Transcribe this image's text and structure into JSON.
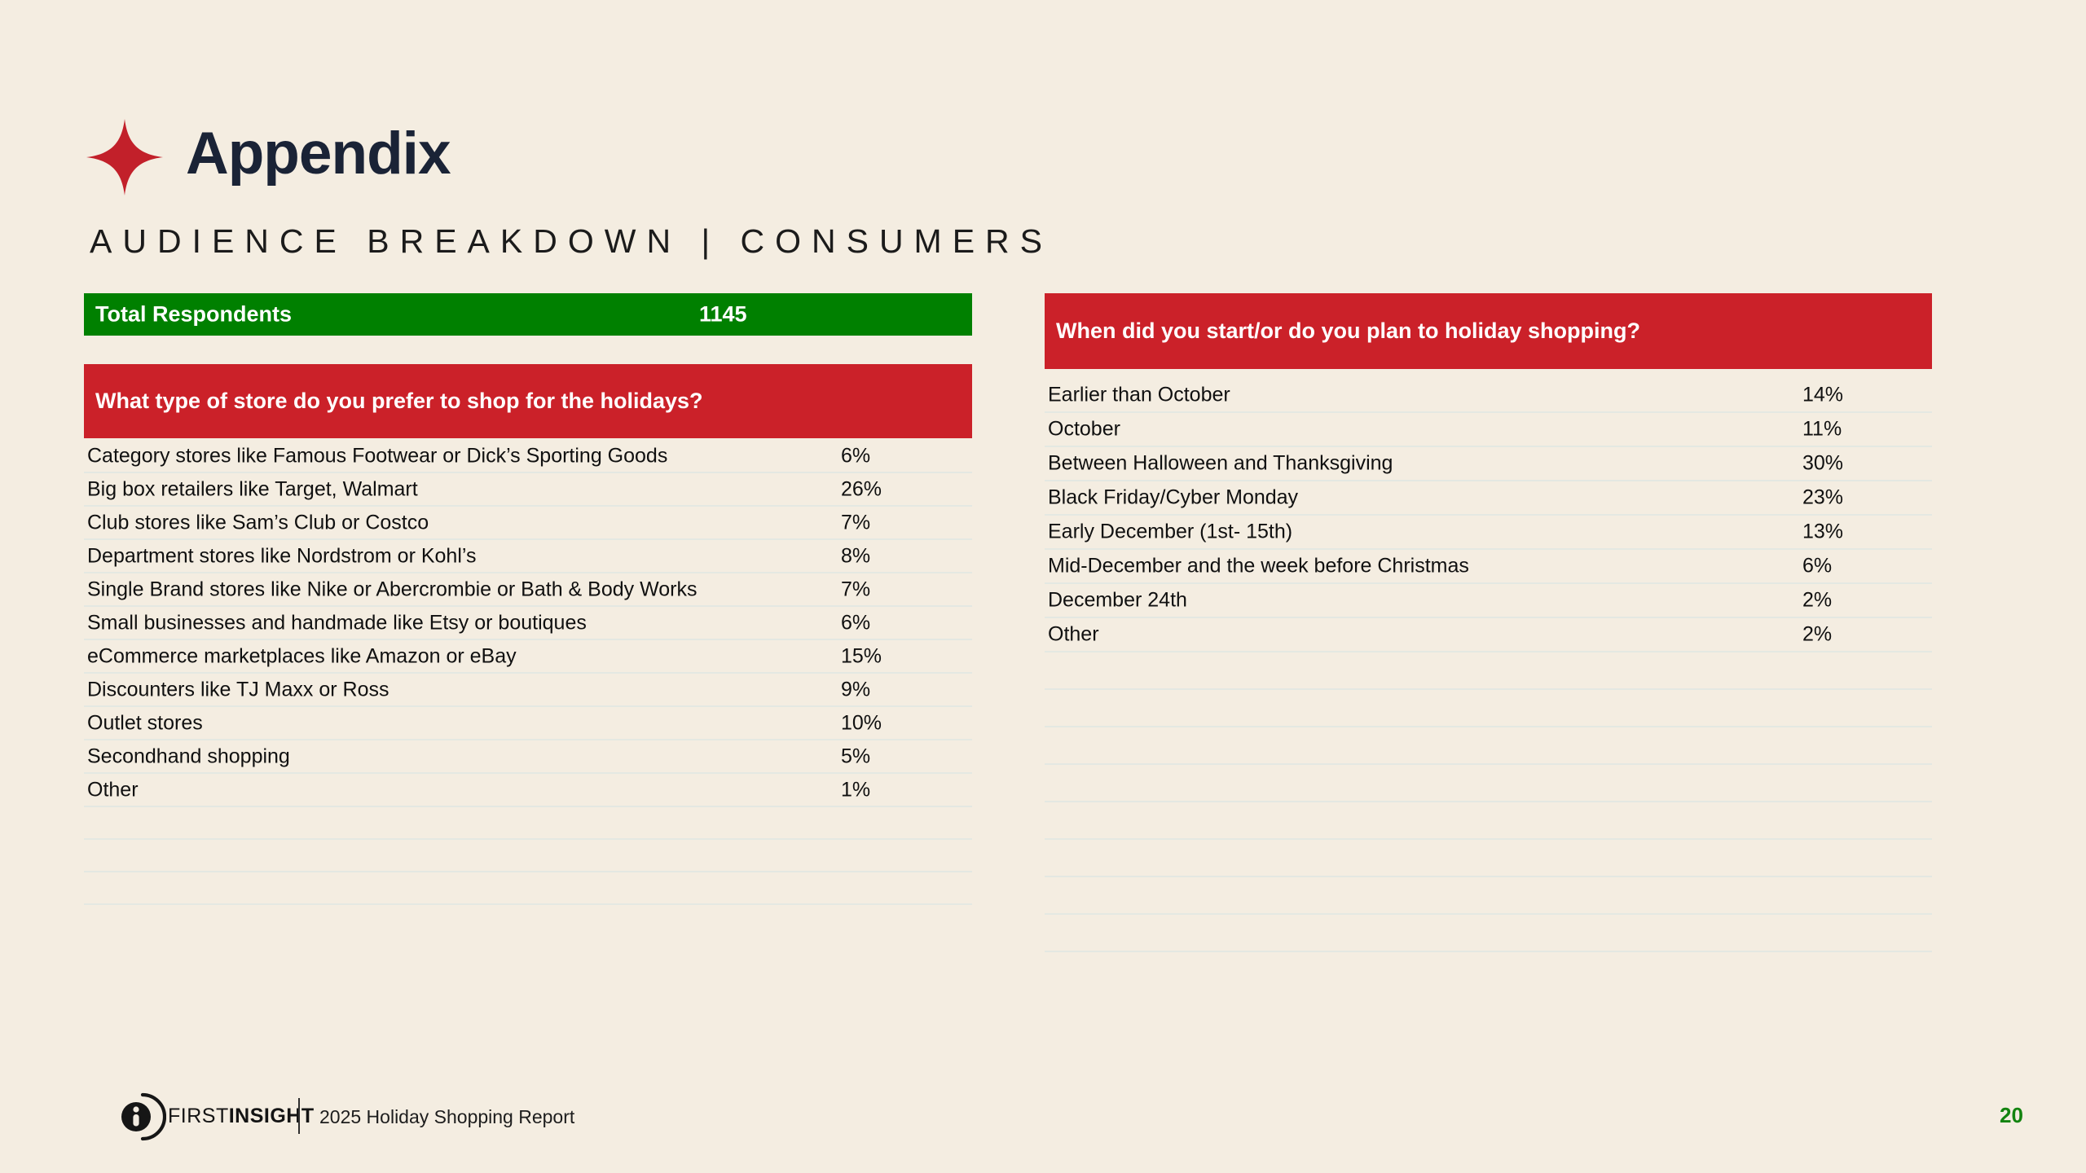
{
  "slide": {
    "title": "Appendix",
    "subtitle": "AUDIENCE BREAKDOWN | CONSUMERS",
    "page_number": "20",
    "background_color": "#f4ede1",
    "accent_red": "#cb2129",
    "accent_green": "#008000",
    "title_color": "#1a2336",
    "star_color": "#c2202a",
    "page_number_color": "#12830f"
  },
  "summary_bar": {
    "label": "Total Respondents",
    "value": "1145"
  },
  "left_table": {
    "question": "What type of store do you prefer to shop for the holidays?",
    "empty_rows": 3,
    "rows": [
      {
        "label": "Category stores like Famous Footwear or Dick’s Sporting Goods",
        "value": "6%"
      },
      {
        "label": "Big box retailers like Target, Walmart",
        "value": "26%"
      },
      {
        "label": "Club stores like Sam’s Club or Costco",
        "value": "7%"
      },
      {
        "label": "Department stores like Nordstrom or Kohl’s",
        "value": "8%"
      },
      {
        "label": "Single Brand stores like Nike or Abercrombie or Bath & Body Works",
        "value": "7%"
      },
      {
        "label": "Small businesses and handmade like Etsy or boutiques",
        "value": "6%"
      },
      {
        "label": "eCommerce marketplaces like Amazon or eBay",
        "value": "15%"
      },
      {
        "label": "Discounters like TJ Maxx or Ross",
        "value": "9%"
      },
      {
        "label": "Outlet stores",
        "value": "10%"
      },
      {
        "label": "Secondhand shopping",
        "value": "5%"
      },
      {
        "label": "Other",
        "value": "1%"
      }
    ]
  },
  "right_table": {
    "question": "When did you start/or do you plan to holiday shopping?",
    "empty_rows": 8,
    "rows": [
      {
        "label": "Earlier than October",
        "value": "14%"
      },
      {
        "label": "October",
        "value": "11%"
      },
      {
        "label": "Between Halloween and Thanksgiving",
        "value": "30%"
      },
      {
        "label": "Black Friday/Cyber Monday",
        "value": "23%"
      },
      {
        "label": "Early December (1st- 15th)",
        "value": "13%"
      },
      {
        "label": "Mid-December and the week before Christmas",
        "value": "6%"
      },
      {
        "label": "December 24th",
        "value": "2%"
      },
      {
        "label": "Other",
        "value": "2%"
      }
    ]
  },
  "footer": {
    "brand_first": "FIRST",
    "brand_insight": "INSIGHT",
    "report_title": "2025 Holiday Shopping Report"
  }
}
